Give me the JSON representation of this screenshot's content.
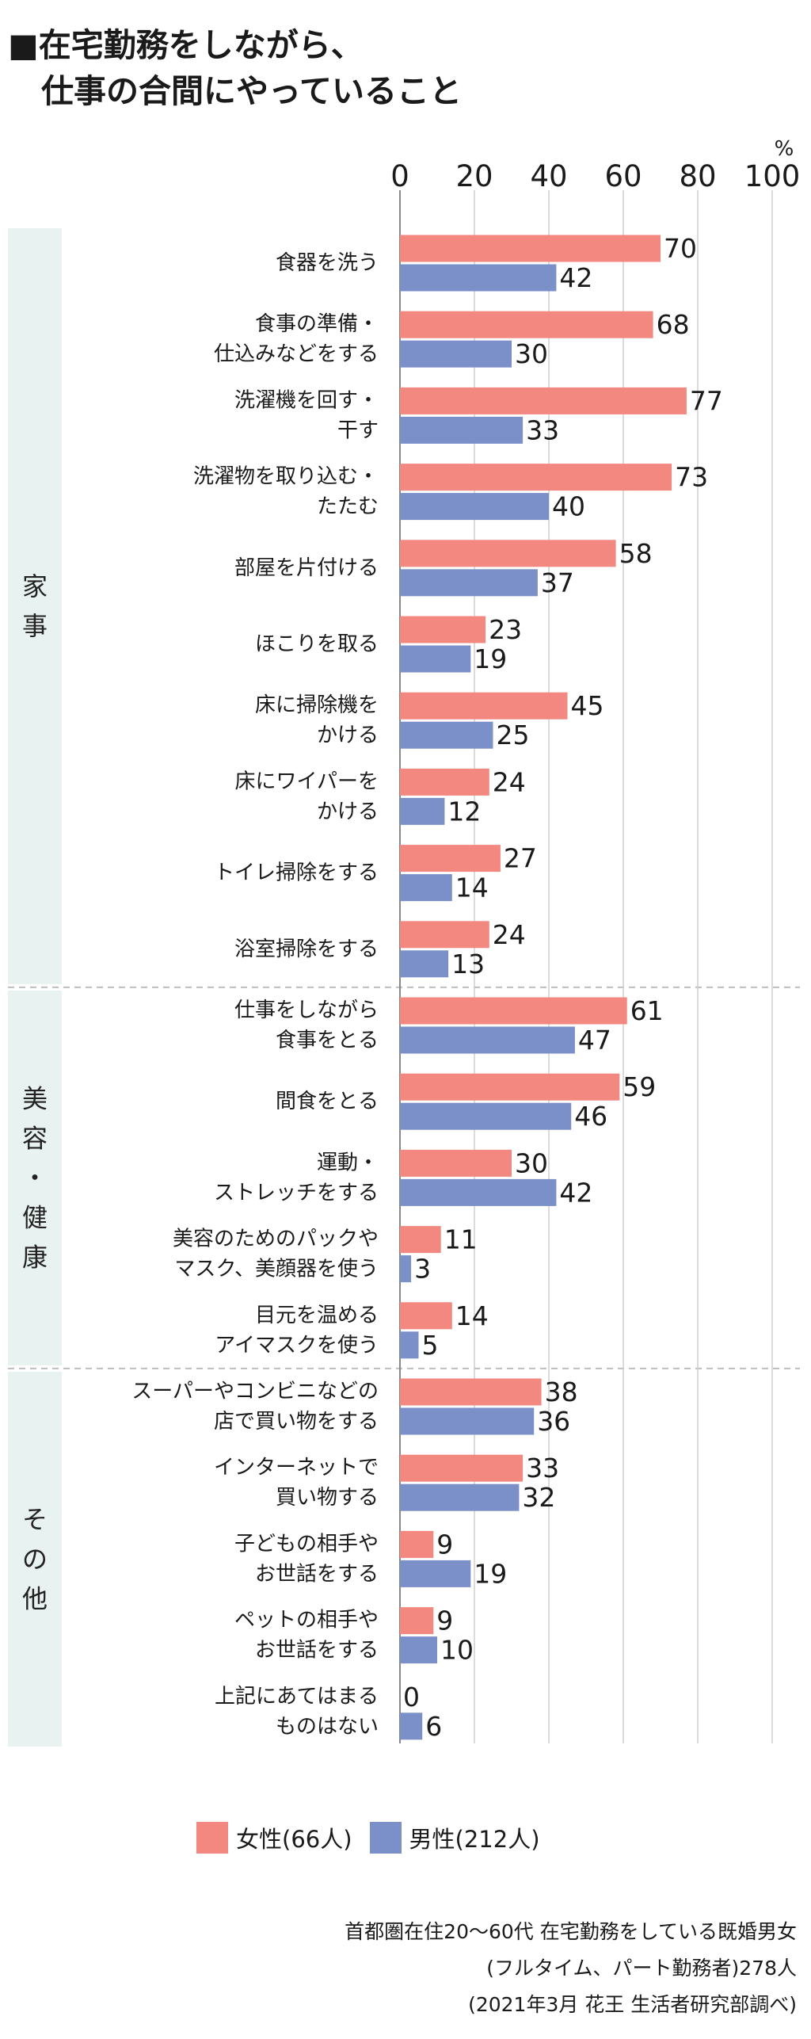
{
  "title": {
    "line1": "■在宅勤務をしながら、",
    "line2": "仕事の合間にやっていること"
  },
  "colors": {
    "female": "#f28880",
    "male": "#7b8fc9",
    "panel": "#e8f2f0",
    "grid": "#cfcfcf",
    "divider": "#bdbdbd"
  },
  "chart_data": {
    "type": "bar",
    "orientation": "horizontal",
    "unit": "%",
    "xlim": [
      0,
      100
    ],
    "ticks": [
      "0",
      "20",
      "40",
      "60",
      "80",
      "100"
    ],
    "groups": [
      {
        "label": [
          "家",
          "事"
        ],
        "start": 0,
        "end": 9
      },
      {
        "label": [
          "美",
          "容",
          "・",
          "健",
          "康"
        ],
        "start": 10,
        "end": 14
      },
      {
        "label": [
          "そ",
          "の",
          "他"
        ],
        "start": 15,
        "end": 19
      }
    ],
    "categories": [
      [
        "食器を洗う"
      ],
      [
        "食事の準備・",
        "仕込みなどをする"
      ],
      [
        "洗濯機を回す・",
        "干す"
      ],
      [
        "洗濯物を取り込む・",
        "たたむ"
      ],
      [
        "部屋を片付ける"
      ],
      [
        "ほこりを取る"
      ],
      [
        "床に掃除機を",
        "かける"
      ],
      [
        "床にワイパーを",
        "かける"
      ],
      [
        "トイレ掃除をする"
      ],
      [
        "浴室掃除をする"
      ],
      [
        "仕事をしながら",
        "食事をとる"
      ],
      [
        "間食をとる"
      ],
      [
        "運動・",
        "ストレッチをする"
      ],
      [
        "美容のためのパックや",
        "マスク、美顔器を使う"
      ],
      [
        "目元を温める",
        "アイマスクを使う"
      ],
      [
        "スーパーやコンビニなどの",
        "店で買い物をする"
      ],
      [
        "インターネットで",
        "買い物する"
      ],
      [
        "子どもの相手や",
        "お世話をする"
      ],
      [
        "ペットの相手や",
        "お世話をする"
      ],
      [
        "上記にあてはまる",
        "ものはない"
      ]
    ],
    "series": [
      {
        "name": "女性(66人)",
        "values": [
          70,
          68,
          77,
          73,
          58,
          23,
          45,
          24,
          27,
          24,
          61,
          59,
          30,
          11,
          14,
          38,
          33,
          9,
          9,
          0
        ]
      },
      {
        "name": "男性(212人)",
        "values": [
          42,
          30,
          33,
          40,
          37,
          19,
          25,
          12,
          14,
          13,
          47,
          46,
          42,
          3,
          5,
          36,
          32,
          19,
          10,
          6
        ]
      }
    ]
  },
  "notes": [
    "首都圏在住20〜60代 在宅勤務をしている既婚男女",
    "(フルタイム、パート勤務者)278人",
    "(2021年3月 花王 生活者研究部調べ)"
  ]
}
